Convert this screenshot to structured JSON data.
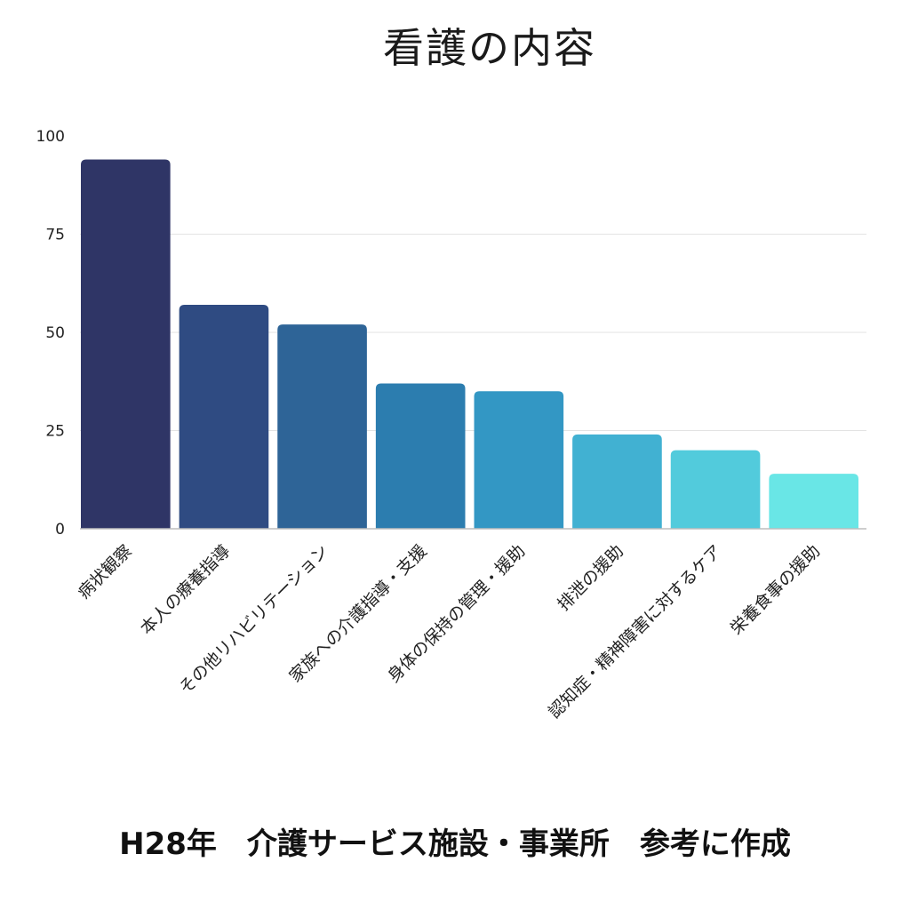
{
  "chart_data": {
    "type": "bar",
    "title": "看護の内容",
    "categories": [
      "病状観察",
      "本人の療養指導",
      "その他リハビリテーション",
      "家族への介護指導・支援",
      "身体の保持の管理・援助",
      "排泄の援助",
      "認知症・精神障害に対するケア",
      "栄養食事の援助"
    ],
    "values": [
      94,
      57,
      52,
      37,
      35,
      24,
      20,
      14
    ],
    "yticks": [
      "0",
      "25",
      "50",
      "75",
      "100"
    ],
    "ylim": [
      0,
      100
    ],
    "xlabel": "",
    "ylabel": "",
    "grid": true,
    "colors": [
      "#2f3566",
      "#2f4b82",
      "#2e6497",
      "#2c7daf",
      "#3397c4",
      "#41b1d2",
      "#52cbdc",
      "#69e6e6"
    ]
  },
  "footer": "H28年　介護サービス施設・事業所　参考に作成"
}
